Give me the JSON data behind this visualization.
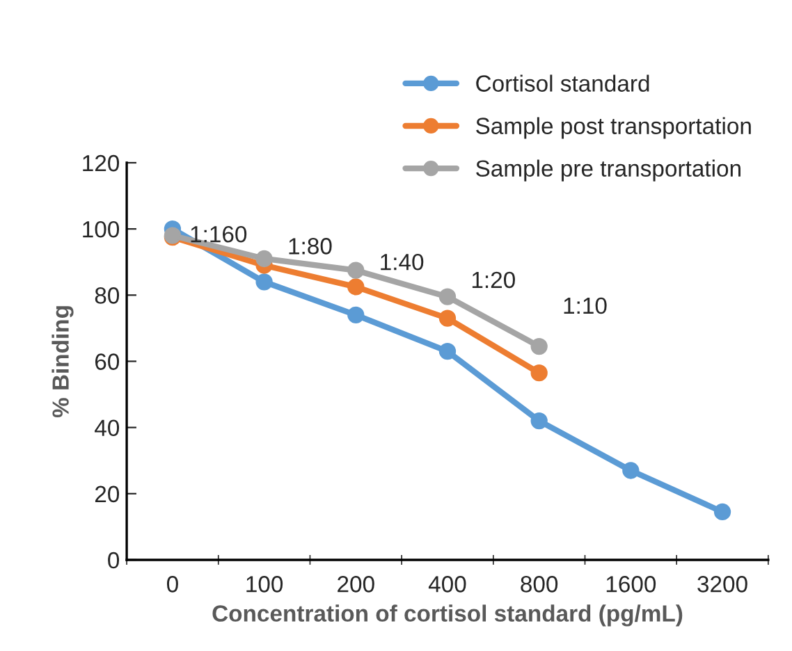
{
  "chart_data": {
    "type": "line",
    "xlabel": "Concentration of cortisol standard (pg/mL)",
    "ylabel": "% Binding",
    "categories": [
      "0",
      "100",
      "200",
      "400",
      "800",
      "1600",
      "3200"
    ],
    "series": [
      {
        "name": "Cortisol standard",
        "color": "#5b9bd5",
        "values": [
          100,
          84,
          74,
          63,
          42,
          27,
          14.5
        ]
      },
      {
        "name": "Sample post transportation",
        "color": "#ed7d31",
        "values": [
          97.5,
          89,
          82.5,
          73,
          56.5,
          null,
          null
        ]
      },
      {
        "name": "Sample pre transportation",
        "color": "#a5a5a5",
        "values": [
          98,
          91,
          87.5,
          79.5,
          64.5,
          null,
          null
        ]
      }
    ],
    "ylim": [
      0,
      120
    ],
    "yticks": [
      0,
      20,
      40,
      60,
      80,
      100,
      120
    ],
    "grid": false,
    "legend": "top right",
    "marker": "circle",
    "line_style": "solid",
    "annotations": [
      "1:160",
      "1:80",
      "1:40",
      "1:20",
      "1:10"
    ]
  }
}
